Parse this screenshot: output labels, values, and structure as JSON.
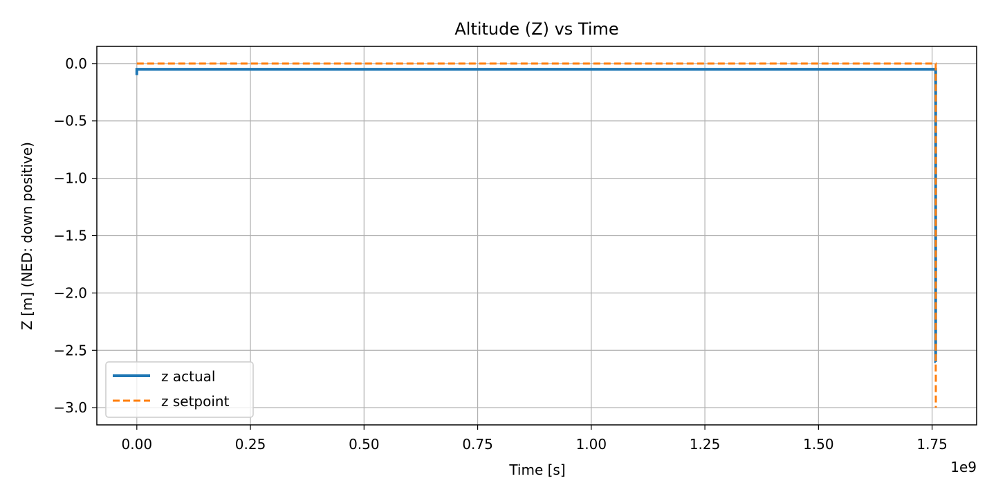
{
  "chart_data": {
    "type": "line",
    "title": "Altitude (Z) vs Time",
    "xlabel": "Time [s]",
    "ylabel": "Z [m] (NED: down positive)",
    "x_scale_label": "1e9",
    "xlim": [
      -0.088,
      1.848
    ],
    "ylim": [
      -3.15,
      0.15
    ],
    "grid": true,
    "legend_position": "lower-left",
    "x_ticks": [
      0.0,
      0.25,
      0.5,
      0.75,
      1.0,
      1.25,
      1.5,
      1.75
    ],
    "x_tick_labels": [
      "0.00",
      "0.25",
      "0.50",
      "0.75",
      "1.00",
      "1.25",
      "1.50",
      "1.75"
    ],
    "y_ticks": [
      0.0,
      -0.5,
      -1.0,
      -1.5,
      -2.0,
      -2.5,
      -3.0
    ],
    "y_tick_labels": [
      "0.0",
      "−0.5",
      "−1.0",
      "−1.5",
      "−2.0",
      "−2.5",
      "−3.0"
    ],
    "series": [
      {
        "name": "z actual",
        "color": "#1f77b4",
        "style": "solid",
        "x": [
          0.0,
          0.0,
          0.0,
          0.003,
          1.757,
          1.7578,
          1.7578,
          1.7579
        ],
        "y": [
          -0.1,
          -0.06,
          -0.05,
          -0.05,
          -0.05,
          -0.05,
          -2.6,
          -2.6
        ]
      },
      {
        "name": "z setpoint",
        "color": "#ff7f0e",
        "style": "dashed",
        "x": [
          0.0,
          1.758,
          1.758,
          1.7582,
          1.7582
        ],
        "y": [
          0.0,
          0.0,
          -2.7,
          -2.7,
          -3.0
        ]
      }
    ]
  }
}
